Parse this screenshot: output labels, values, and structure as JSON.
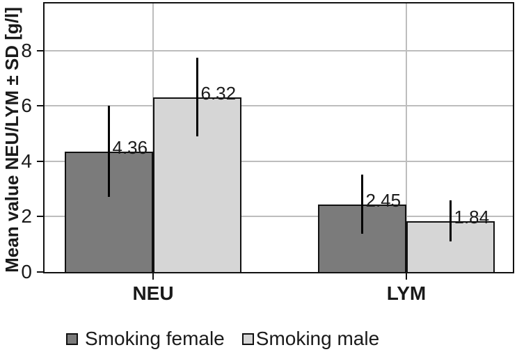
{
  "chart_data": {
    "type": "bar",
    "title": "",
    "ylabel": "Mean value NEU/LYM ± SD [g/l]",
    "xlabel": "",
    "categories": [
      "NEU",
      "LYM"
    ],
    "series": [
      {
        "name": "Smoking female",
        "color": "#7b7b7b",
        "values": [
          4.36,
          2.45
        ],
        "value_labels": [
          "4.36",
          "2.45"
        ],
        "sd": [
          1.65,
          1.07
        ]
      },
      {
        "name": "Smoking male",
        "color": "#d6d6d6",
        "values": [
          6.32,
          1.84
        ],
        "value_labels": [
          "6.32",
          "1.84"
        ],
        "sd": [
          1.41,
          0.74
        ]
      }
    ],
    "ytick_labels": [
      "0",
      "2",
      "4",
      "6",
      "8"
    ],
    "ytick_values": [
      0,
      2,
      4,
      6,
      8
    ],
    "ylim": [
      0,
      9.7
    ],
    "grid": true,
    "legend_position": "bottom",
    "colors": {
      "axis": "#111111",
      "grid": "#bdbdbd",
      "error_bar": "#000000",
      "bar_border": "#111111",
      "text": "#1a1a1a"
    }
  }
}
